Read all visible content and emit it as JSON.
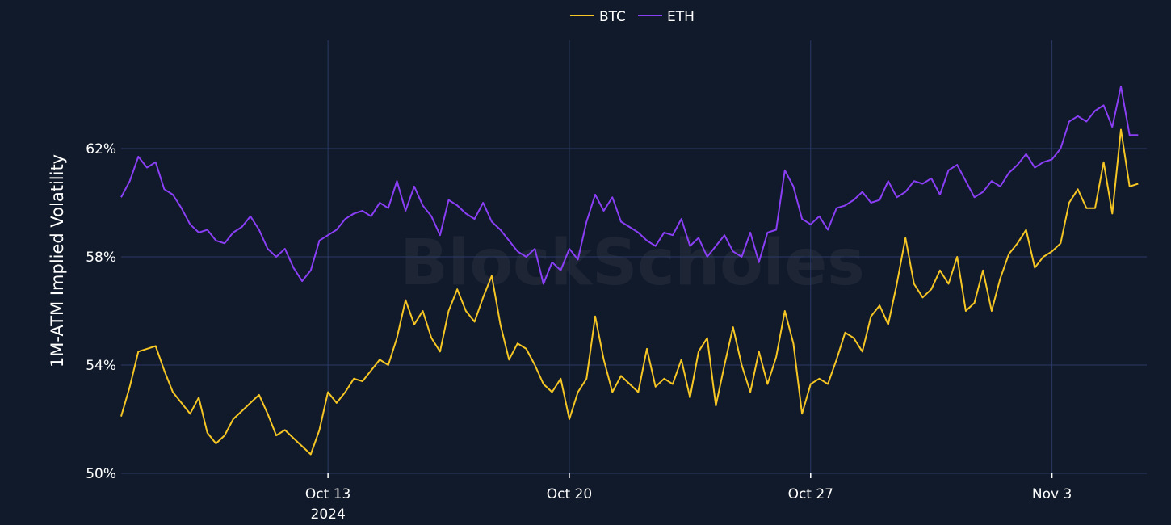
{
  "chart_data": {
    "type": "line",
    "title": "",
    "watermark": "BlockScholes",
    "ylabel": "1M-ATM Implied Volatility",
    "xlabel": "",
    "x_range": [
      "2024-10-07",
      "2024-11-05"
    ],
    "ylim": [
      50,
      66
    ],
    "y_ticks": [
      {
        "value": 50,
        "label": "50%"
      },
      {
        "value": 54,
        "label": "54%"
      },
      {
        "value": 58,
        "label": "58%"
      },
      {
        "value": 62,
        "label": "62%"
      }
    ],
    "x_ticks": [
      {
        "date": "2024-10-13",
        "label": "Oct 13",
        "sublabel": "2024"
      },
      {
        "date": "2024-10-20",
        "label": "Oct 20",
        "sublabel": ""
      },
      {
        "date": "2024-10-27",
        "label": "Oct 27",
        "sublabel": ""
      },
      {
        "date": "2024-11-03",
        "label": "Nov 3",
        "sublabel": ""
      }
    ],
    "grid": true,
    "legend": "top-center",
    "series": [
      {
        "name": "BTC",
        "color": "#f6c624",
        "points": [
          [
            "2024-10-07T00:00",
            52.1
          ],
          [
            "2024-10-07T06:00",
            53.2
          ],
          [
            "2024-10-07T12:00",
            54.5
          ],
          [
            "2024-10-07T18:00",
            54.6
          ],
          [
            "2024-10-08T00:00",
            54.7
          ],
          [
            "2024-10-08T06:00",
            53.8
          ],
          [
            "2024-10-08T12:00",
            53.0
          ],
          [
            "2024-10-08T18:00",
            52.6
          ],
          [
            "2024-10-09T00:00",
            52.2
          ],
          [
            "2024-10-09T06:00",
            52.8
          ],
          [
            "2024-10-09T12:00",
            51.5
          ],
          [
            "2024-10-09T18:00",
            51.1
          ],
          [
            "2024-10-10T00:00",
            51.4
          ],
          [
            "2024-10-10T06:00",
            52.0
          ],
          [
            "2024-10-10T12:00",
            52.3
          ],
          [
            "2024-10-10T18:00",
            52.6
          ],
          [
            "2024-10-11T00:00",
            52.9
          ],
          [
            "2024-10-11T06:00",
            52.2
          ],
          [
            "2024-10-11T12:00",
            51.4
          ],
          [
            "2024-10-11T18:00",
            51.6
          ],
          [
            "2024-10-12T00:00",
            51.3
          ],
          [
            "2024-10-12T06:00",
            51.0
          ],
          [
            "2024-10-12T12:00",
            50.7
          ],
          [
            "2024-10-12T18:00",
            51.6
          ],
          [
            "2024-10-13T00:00",
            53.0
          ],
          [
            "2024-10-13T06:00",
            52.6
          ],
          [
            "2024-10-13T12:00",
            53.0
          ],
          [
            "2024-10-13T18:00",
            53.5
          ],
          [
            "2024-10-14T00:00",
            53.4
          ],
          [
            "2024-10-14T06:00",
            53.8
          ],
          [
            "2024-10-14T12:00",
            54.2
          ],
          [
            "2024-10-14T18:00",
            54.0
          ],
          [
            "2024-10-15T00:00",
            55.0
          ],
          [
            "2024-10-15T06:00",
            56.4
          ],
          [
            "2024-10-15T12:00",
            55.5
          ],
          [
            "2024-10-15T18:00",
            56.0
          ],
          [
            "2024-10-16T00:00",
            55.0
          ],
          [
            "2024-10-16T06:00",
            54.5
          ],
          [
            "2024-10-16T12:00",
            56.0
          ],
          [
            "2024-10-16T18:00",
            56.8
          ],
          [
            "2024-10-17T00:00",
            56.0
          ],
          [
            "2024-10-17T06:00",
            55.6
          ],
          [
            "2024-10-17T12:00",
            56.5
          ],
          [
            "2024-10-17T18:00",
            57.3
          ],
          [
            "2024-10-18T00:00",
            55.5
          ],
          [
            "2024-10-18T06:00",
            54.2
          ],
          [
            "2024-10-18T12:00",
            54.8
          ],
          [
            "2024-10-18T18:00",
            54.6
          ],
          [
            "2024-10-19T00:00",
            54.0
          ],
          [
            "2024-10-19T06:00",
            53.3
          ],
          [
            "2024-10-19T12:00",
            53.0
          ],
          [
            "2024-10-19T18:00",
            53.5
          ],
          [
            "2024-10-20T00:00",
            52.0
          ],
          [
            "2024-10-20T06:00",
            53.0
          ],
          [
            "2024-10-20T12:00",
            53.5
          ],
          [
            "2024-10-20T18:00",
            55.8
          ],
          [
            "2024-10-21T00:00",
            54.2
          ],
          [
            "2024-10-21T06:00",
            53.0
          ],
          [
            "2024-10-21T12:00",
            53.6
          ],
          [
            "2024-10-21T18:00",
            53.3
          ],
          [
            "2024-10-22T00:00",
            53.0
          ],
          [
            "2024-10-22T06:00",
            54.6
          ],
          [
            "2024-10-22T12:00",
            53.2
          ],
          [
            "2024-10-22T18:00",
            53.5
          ],
          [
            "2024-10-23T00:00",
            53.3
          ],
          [
            "2024-10-23T06:00",
            54.2
          ],
          [
            "2024-10-23T12:00",
            52.8
          ],
          [
            "2024-10-23T18:00",
            54.5
          ],
          [
            "2024-10-24T00:00",
            55.0
          ],
          [
            "2024-10-24T06:00",
            52.5
          ],
          [
            "2024-10-24T12:00",
            54.0
          ],
          [
            "2024-10-24T18:00",
            55.4
          ],
          [
            "2024-10-25T00:00",
            54.0
          ],
          [
            "2024-10-25T06:00",
            53.0
          ],
          [
            "2024-10-25T12:00",
            54.5
          ],
          [
            "2024-10-25T18:00",
            53.3
          ],
          [
            "2024-10-26T00:00",
            54.3
          ],
          [
            "2024-10-26T06:00",
            56.0
          ],
          [
            "2024-10-26T12:00",
            54.8
          ],
          [
            "2024-10-26T18:00",
            52.2
          ],
          [
            "2024-10-27T00:00",
            53.3
          ],
          [
            "2024-10-27T06:00",
            53.5
          ],
          [
            "2024-10-27T12:00",
            53.3
          ],
          [
            "2024-10-27T18:00",
            54.2
          ],
          [
            "2024-10-28T00:00",
            55.2
          ],
          [
            "2024-10-28T06:00",
            55.0
          ],
          [
            "2024-10-28T12:00",
            54.5
          ],
          [
            "2024-10-28T18:00",
            55.8
          ],
          [
            "2024-10-29T00:00",
            56.2
          ],
          [
            "2024-10-29T06:00",
            55.5
          ],
          [
            "2024-10-29T12:00",
            57.0
          ],
          [
            "2024-10-29T18:00",
            58.7
          ],
          [
            "2024-10-30T00:00",
            57.0
          ],
          [
            "2024-10-30T06:00",
            56.5
          ],
          [
            "2024-10-30T12:00",
            56.8
          ],
          [
            "2024-10-30T18:00",
            57.5
          ],
          [
            "2024-10-31T00:00",
            57.0
          ],
          [
            "2024-10-31T06:00",
            58.0
          ],
          [
            "2024-10-31T12:00",
            56.0
          ],
          [
            "2024-10-31T18:00",
            56.3
          ],
          [
            "2024-11-01T00:00",
            57.5
          ],
          [
            "2024-11-01T06:00",
            56.0
          ],
          [
            "2024-11-01T12:00",
            57.2
          ],
          [
            "2024-11-01T18:00",
            58.1
          ],
          [
            "2024-11-02T00:00",
            58.5
          ],
          [
            "2024-11-02T06:00",
            59.0
          ],
          [
            "2024-11-02T12:00",
            57.6
          ],
          [
            "2024-11-02T18:00",
            58.0
          ],
          [
            "2024-11-03T00:00",
            58.2
          ],
          [
            "2024-11-03T06:00",
            58.5
          ],
          [
            "2024-11-03T12:00",
            60.0
          ],
          [
            "2024-11-03T18:00",
            60.5
          ],
          [
            "2024-11-04T00:00",
            59.8
          ],
          [
            "2024-11-04T06:00",
            59.8
          ],
          [
            "2024-11-04T12:00",
            61.5
          ],
          [
            "2024-11-04T18:00",
            59.6
          ],
          [
            "2024-11-05T00:00",
            62.7
          ],
          [
            "2024-11-05T06:00",
            60.6
          ],
          [
            "2024-11-05T12:00",
            60.7
          ]
        ]
      },
      {
        "name": "ETH",
        "color": "#8a3ff5",
        "points": [
          [
            "2024-10-07T00:00",
            60.2
          ],
          [
            "2024-10-07T06:00",
            60.8
          ],
          [
            "2024-10-07T12:00",
            61.7
          ],
          [
            "2024-10-07T18:00",
            61.3
          ],
          [
            "2024-10-08T00:00",
            61.5
          ],
          [
            "2024-10-08T06:00",
            60.5
          ],
          [
            "2024-10-08T12:00",
            60.3
          ],
          [
            "2024-10-08T18:00",
            59.8
          ],
          [
            "2024-10-09T00:00",
            59.2
          ],
          [
            "2024-10-09T06:00",
            58.9
          ],
          [
            "2024-10-09T12:00",
            59.0
          ],
          [
            "2024-10-09T18:00",
            58.6
          ],
          [
            "2024-10-10T00:00",
            58.5
          ],
          [
            "2024-10-10T06:00",
            58.9
          ],
          [
            "2024-10-10T12:00",
            59.1
          ],
          [
            "2024-10-10T18:00",
            59.5
          ],
          [
            "2024-10-11T00:00",
            59.0
          ],
          [
            "2024-10-11T06:00",
            58.3
          ],
          [
            "2024-10-11T12:00",
            58.0
          ],
          [
            "2024-10-11T18:00",
            58.3
          ],
          [
            "2024-10-12T00:00",
            57.6
          ],
          [
            "2024-10-12T06:00",
            57.1
          ],
          [
            "2024-10-12T12:00",
            57.5
          ],
          [
            "2024-10-12T18:00",
            58.6
          ],
          [
            "2024-10-13T00:00",
            58.8
          ],
          [
            "2024-10-13T06:00",
            59.0
          ],
          [
            "2024-10-13T12:00",
            59.4
          ],
          [
            "2024-10-13T18:00",
            59.6
          ],
          [
            "2024-10-14T00:00",
            59.7
          ],
          [
            "2024-10-14T06:00",
            59.5
          ],
          [
            "2024-10-14T12:00",
            60.0
          ],
          [
            "2024-10-14T18:00",
            59.8
          ],
          [
            "2024-10-15T00:00",
            60.8
          ],
          [
            "2024-10-15T06:00",
            59.7
          ],
          [
            "2024-10-15T12:00",
            60.6
          ],
          [
            "2024-10-15T18:00",
            59.9
          ],
          [
            "2024-10-16T00:00",
            59.5
          ],
          [
            "2024-10-16T06:00",
            58.8
          ],
          [
            "2024-10-16T12:00",
            60.1
          ],
          [
            "2024-10-16T18:00",
            59.9
          ],
          [
            "2024-10-17T00:00",
            59.6
          ],
          [
            "2024-10-17T06:00",
            59.4
          ],
          [
            "2024-10-17T12:00",
            60.0
          ],
          [
            "2024-10-17T18:00",
            59.3
          ],
          [
            "2024-10-18T00:00",
            59.0
          ],
          [
            "2024-10-18T06:00",
            58.6
          ],
          [
            "2024-10-18T12:00",
            58.2
          ],
          [
            "2024-10-18T18:00",
            58.0
          ],
          [
            "2024-10-19T00:00",
            58.3
          ],
          [
            "2024-10-19T06:00",
            57.0
          ],
          [
            "2024-10-19T12:00",
            57.8
          ],
          [
            "2024-10-19T18:00",
            57.5
          ],
          [
            "2024-10-20T00:00",
            58.3
          ],
          [
            "2024-10-20T06:00",
            57.9
          ],
          [
            "2024-10-20T12:00",
            59.3
          ],
          [
            "2024-10-20T18:00",
            60.3
          ],
          [
            "2024-10-21T00:00",
            59.7
          ],
          [
            "2024-10-21T06:00",
            60.2
          ],
          [
            "2024-10-21T12:00",
            59.3
          ],
          [
            "2024-10-21T18:00",
            59.1
          ],
          [
            "2024-10-22T00:00",
            58.9
          ],
          [
            "2024-10-22T06:00",
            58.6
          ],
          [
            "2024-10-22T12:00",
            58.4
          ],
          [
            "2024-10-22T18:00",
            58.9
          ],
          [
            "2024-10-23T00:00",
            58.8
          ],
          [
            "2024-10-23T06:00",
            59.4
          ],
          [
            "2024-10-23T12:00",
            58.4
          ],
          [
            "2024-10-23T18:00",
            58.7
          ],
          [
            "2024-10-24T00:00",
            58.0
          ],
          [
            "2024-10-24T06:00",
            58.4
          ],
          [
            "2024-10-24T12:00",
            58.8
          ],
          [
            "2024-10-24T18:00",
            58.2
          ],
          [
            "2024-10-25T00:00",
            58.0
          ],
          [
            "2024-10-25T06:00",
            58.9
          ],
          [
            "2024-10-25T12:00",
            57.8
          ],
          [
            "2024-10-25T18:00",
            58.9
          ],
          [
            "2024-10-26T00:00",
            59.0
          ],
          [
            "2024-10-26T06:00",
            61.2
          ],
          [
            "2024-10-26T12:00",
            60.6
          ],
          [
            "2024-10-26T18:00",
            59.4
          ],
          [
            "2024-10-27T00:00",
            59.2
          ],
          [
            "2024-10-27T06:00",
            59.5
          ],
          [
            "2024-10-27T12:00",
            59.0
          ],
          [
            "2024-10-27T18:00",
            59.8
          ],
          [
            "2024-10-28T00:00",
            59.9
          ],
          [
            "2024-10-28T06:00",
            60.1
          ],
          [
            "2024-10-28T12:00",
            60.4
          ],
          [
            "2024-10-28T18:00",
            60.0
          ],
          [
            "2024-10-29T00:00",
            60.1
          ],
          [
            "2024-10-29T06:00",
            60.8
          ],
          [
            "2024-10-29T12:00",
            60.2
          ],
          [
            "2024-10-29T18:00",
            60.4
          ],
          [
            "2024-10-30T00:00",
            60.8
          ],
          [
            "2024-10-30T06:00",
            60.7
          ],
          [
            "2024-10-30T12:00",
            60.9
          ],
          [
            "2024-10-30T18:00",
            60.3
          ],
          [
            "2024-10-31T00:00",
            61.2
          ],
          [
            "2024-10-31T06:00",
            61.4
          ],
          [
            "2024-10-31T12:00",
            60.8
          ],
          [
            "2024-10-31T18:00",
            60.2
          ],
          [
            "2024-11-01T00:00",
            60.4
          ],
          [
            "2024-11-01T06:00",
            60.8
          ],
          [
            "2024-11-01T12:00",
            60.6
          ],
          [
            "2024-11-01T18:00",
            61.1
          ],
          [
            "2024-11-02T00:00",
            61.4
          ],
          [
            "2024-11-02T06:00",
            61.8
          ],
          [
            "2024-11-02T12:00",
            61.3
          ],
          [
            "2024-11-02T18:00",
            61.5
          ],
          [
            "2024-11-03T00:00",
            61.6
          ],
          [
            "2024-11-03T06:00",
            62.0
          ],
          [
            "2024-11-03T12:00",
            63.0
          ],
          [
            "2024-11-03T18:00",
            63.2
          ],
          [
            "2024-11-04T00:00",
            63.0
          ],
          [
            "2024-11-04T06:00",
            63.4
          ],
          [
            "2024-11-04T12:00",
            63.6
          ],
          [
            "2024-11-04T18:00",
            62.8
          ],
          [
            "2024-11-05T00:00",
            64.3
          ],
          [
            "2024-11-05T06:00",
            62.5
          ],
          [
            "2024-11-05T12:00",
            62.5
          ]
        ]
      }
    ]
  }
}
